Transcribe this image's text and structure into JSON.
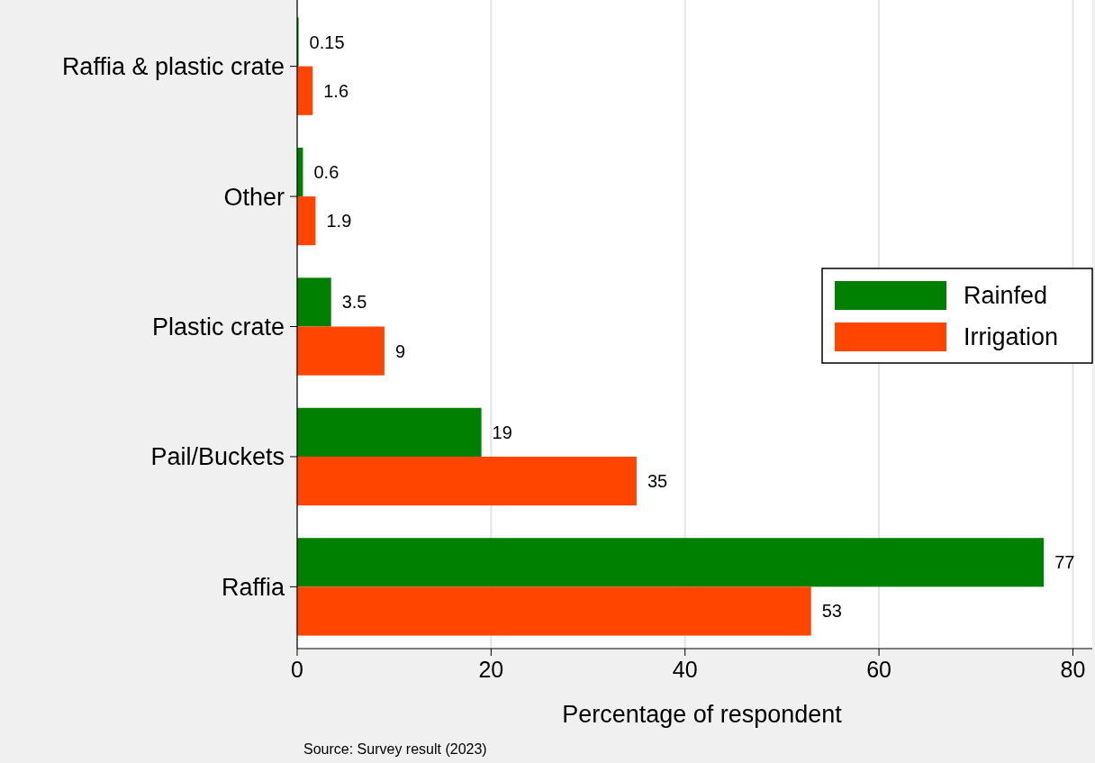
{
  "chart_data": {
    "type": "bar",
    "orientation": "horizontal",
    "categories": [
      "Raffia & plastic crate",
      "Other",
      "Plastic crate",
      "Pail/Buckets",
      "Raffia"
    ],
    "series": [
      {
        "name": "Rainfed",
        "color": "#008000",
        "values": [
          0.15,
          0.6,
          3.5,
          19,
          77
        ]
      },
      {
        "name": "Irrigation",
        "color": "#ff4500",
        "values": [
          1.6,
          1.9,
          9,
          35,
          53
        ]
      }
    ],
    "xlabel": "Percentage of respondent",
    "xlim": [
      0,
      82
    ],
    "xticks": [
      0,
      20,
      40,
      60,
      80
    ],
    "grid": "x",
    "legend": "right",
    "data_labels": true,
    "annotations": [
      "Source: Survey result (2023)"
    ]
  }
}
